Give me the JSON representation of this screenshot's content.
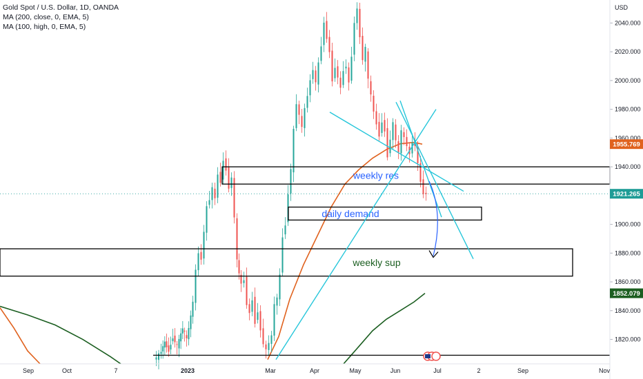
{
  "legend": {
    "title": "Gold Spot / U.S. Dollar, 1D, OANDA",
    "ma1": "MA (200, close, 0, EMA, 5)",
    "ma2": "MA (100, high, 0, EMA, 5)"
  },
  "chart_data": {
    "type": "candlestick",
    "currency_label": "USD",
    "ylim": [
      1803,
      2056
    ],
    "y_ticks": [
      "1820.000",
      "1840.000",
      "1860.000",
      "1880.000",
      "1900.000",
      "1920.000",
      "1940.000",
      "1960.000",
      "1980.000",
      "2000.000",
      "2020.000",
      "2040.000"
    ],
    "y_tick_values": [
      1820,
      1840,
      1860,
      1880,
      1900,
      1920,
      1940,
      1960,
      1980,
      2000,
      2020,
      2040
    ],
    "x_ticks": [
      "Sep",
      "Oct",
      "7",
      "2023",
      "Mar",
      "Apr",
      "May",
      "Jun",
      "Jul",
      "2",
      "Sep",
      "Nov"
    ],
    "x_tick_positions": [
      41,
      97,
      168,
      272,
      392,
      456,
      515,
      573,
      634,
      694,
      758,
      876
    ],
    "price_badges": [
      {
        "value": "1955.769",
        "price": 1955.769,
        "color": "#e0621e"
      },
      {
        "value": "1921.265",
        "price": 1921.265,
        "color": "#1e9c96"
      },
      {
        "value": "1852.079",
        "price": 1852.079,
        "color": "#1b5e20"
      }
    ],
    "last_price": 1921.265,
    "price_path": [
      [
        225,
        1806
      ],
      [
        232,
        1809
      ],
      [
        240,
        1818
      ],
      [
        246,
        1812
      ],
      [
        252,
        1822
      ],
      [
        258,
        1815
      ],
      [
        266,
        1828
      ],
      [
        272,
        1820
      ],
      [
        278,
        1836
      ],
      [
        282,
        1846
      ],
      [
        286,
        1868
      ],
      [
        290,
        1880
      ],
      [
        294,
        1876
      ],
      [
        298,
        1895
      ],
      [
        302,
        1912
      ],
      [
        306,
        1918
      ],
      [
        310,
        1925
      ],
      [
        314,
        1918
      ],
      [
        318,
        1935
      ],
      [
        322,
        1930
      ],
      [
        326,
        1945
      ],
      [
        330,
        1938
      ],
      [
        334,
        1926
      ],
      [
        338,
        1932
      ],
      [
        342,
        1905
      ],
      [
        345,
        1875
      ],
      [
        348,
        1866
      ],
      [
        352,
        1858
      ],
      [
        356,
        1862
      ],
      [
        360,
        1845
      ],
      [
        364,
        1838
      ],
      [
        368,
        1848
      ],
      [
        372,
        1832
      ],
      [
        376,
        1840
      ],
      [
        380,
        1826
      ],
      [
        384,
        1818
      ],
      [
        388,
        1812
      ],
      [
        392,
        1818
      ],
      [
        396,
        1822
      ],
      [
        400,
        1845
      ],
      [
        404,
        1848
      ],
      [
        408,
        1865
      ],
      [
        412,
        1892
      ],
      [
        416,
        1900
      ],
      [
        420,
        1922
      ],
      [
        424,
        1938
      ],
      [
        428,
        1965
      ],
      [
        432,
        1985
      ],
      [
        436,
        1975
      ],
      [
        440,
        1968
      ],
      [
        444,
        1980
      ],
      [
        448,
        1990
      ],
      [
        452,
        2000
      ],
      [
        456,
        2008
      ],
      [
        460,
        1998
      ],
      [
        464,
        2012
      ],
      [
        468,
        2025
      ],
      [
        472,
        2040
      ],
      [
        476,
        2030
      ],
      [
        480,
        2020
      ],
      [
        484,
        2000
      ],
      [
        488,
        2010
      ],
      [
        492,
        2002
      ],
      [
        496,
        1995
      ],
      [
        500,
        2008
      ],
      [
        504,
        2010
      ],
      [
        508,
        1998
      ],
      [
        512,
        2018
      ],
      [
        516,
        2040
      ],
      [
        520,
        2050
      ],
      [
        524,
        2030
      ],
      [
        528,
        2015
      ],
      [
        532,
        2022
      ],
      [
        536,
        2000
      ],
      [
        540,
        1990
      ],
      [
        544,
        1978
      ],
      [
        548,
        1970
      ],
      [
        552,
        1962
      ],
      [
        556,
        1972
      ],
      [
        560,
        1965
      ],
      [
        564,
        1948
      ],
      [
        568,
        1960
      ],
      [
        572,
        1970
      ],
      [
        576,
        1958
      ],
      [
        580,
        1950
      ],
      [
        584,
        1965
      ],
      [
        588,
        1960
      ],
      [
        592,
        1955
      ],
      [
        596,
        1948
      ],
      [
        600,
        1958
      ],
      [
        604,
        1955
      ],
      [
        608,
        1942
      ],
      [
        612,
        1930
      ],
      [
        616,
        1922
      ],
      [
        620,
        1921
      ]
    ],
    "ma200_ema": [
      [
        388,
        1806
      ],
      [
        404,
        1822
      ],
      [
        420,
        1848
      ],
      [
        440,
        1872
      ],
      [
        460,
        1892
      ],
      [
        480,
        1912
      ],
      [
        500,
        1928
      ],
      [
        520,
        1938
      ],
      [
        540,
        1946
      ],
      [
        560,
        1952
      ],
      [
        580,
        1956
      ],
      [
        600,
        1957
      ],
      [
        612,
        1955.769
      ]
    ],
    "ma_left_orange": [
      [
        0,
        1842
      ],
      [
        20,
        1828
      ],
      [
        40,
        1812
      ],
      [
        58,
        1803
      ]
    ],
    "ma_left_green": [
      [
        0,
        1843
      ],
      [
        40,
        1837
      ],
      [
        80,
        1830
      ],
      [
        120,
        1820
      ],
      [
        160,
        1808
      ],
      [
        175,
        1803
      ]
    ],
    "ma_right_green": [
      [
        498,
        1803
      ],
      [
        520,
        1815
      ],
      [
        540,
        1826
      ],
      [
        560,
        1834
      ],
      [
        580,
        1840
      ],
      [
        600,
        1846
      ],
      [
        616,
        1852.079
      ]
    ],
    "zones": [
      {
        "label": "weekly res",
        "x1": 322,
        "x2": 884,
        "top": 1940,
        "bottom": 1928,
        "color": "#2962ff"
      },
      {
        "label": "daily demand",
        "x1": 418,
        "x2": 698,
        "top": 1912,
        "bottom": 1903,
        "color": "#2962ff"
      },
      {
        "label": "weekly sup",
        "x1": 0,
        "x2": 830,
        "top": 1883,
        "bottom": 1864,
        "color": "#1b5e20"
      }
    ],
    "support_line": {
      "x1": 222,
      "x2": 884,
      "price": 1809
    },
    "trend_lines": [
      [
        [
          478,
          1978
        ],
        [
          672,
          1923
        ]
      ],
      [
        [
          574,
          1985
        ],
        [
          686,
          1876
        ]
      ],
      [
        [
          400,
          1806
        ],
        [
          632,
          1980
        ]
      ],
      [
        [
          580,
          1986
        ],
        [
          640,
          1905
        ]
      ]
    ],
    "projection_arrow": {
      "from": [
        622,
        1930
      ],
      "to": [
        628,
        1878
      ]
    }
  }
}
